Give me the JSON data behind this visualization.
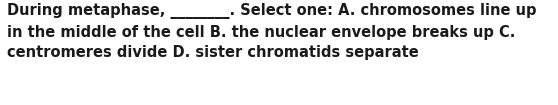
{
  "text": "During metaphase, ________. Select one: A. chromosomes line up\nin the middle of the cell B. the nuclear envelope breaks up C.\ncentromeres divide D. sister chromatids separate",
  "background_color": "#ffffff",
  "text_color": "#1a1a1a",
  "font_size": 10.5,
  "font_weight": "bold",
  "font_family": "DejaVu Sans",
  "fig_width": 5.58,
  "fig_height": 1.05,
  "dpi": 100
}
